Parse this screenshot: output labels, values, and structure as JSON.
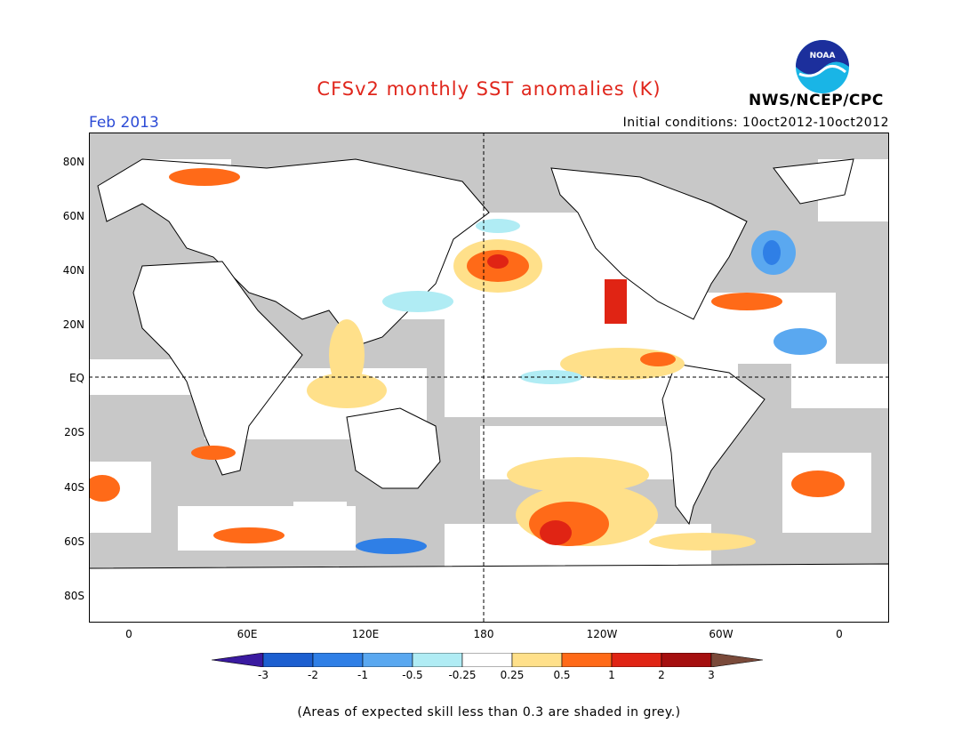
{
  "title": "CFSv2 monthly SST anomalies (K)",
  "valid_month": "Feb 2013",
  "initial_conditions": "Initial conditions: 10oct2012-10oct2012",
  "agency": "NWS/NCEP/CPC",
  "logo_text": "NOAA",
  "lat_labels": [
    "80N",
    "60N",
    "40N",
    "20N",
    "EQ",
    "20S",
    "40S",
    "60S",
    "80S"
  ],
  "lon_labels": [
    "0",
    "60E",
    "120E",
    "180",
    "120W",
    "60W",
    "0"
  ],
  "colorbar": {
    "tick_labels": [
      "-3",
      "-2",
      "-1",
      "-0.5",
      "-0.25",
      "0.25",
      "0.5",
      "1",
      "2",
      "3"
    ],
    "colors": [
      "#3a1aa0",
      "#1c5fd0",
      "#2f7fe6",
      "#5aa8f0",
      "#b0ecf4",
      "#ffffff",
      "#ffe08a",
      "#ff6a18",
      "#e02414",
      "#a50f0f",
      "#7a4a3a"
    ]
  },
  "map_colors": {
    "grey_no_skill": "#c8c8c8",
    "land": "#ffffff",
    "coast": "#000000"
  },
  "note": "(Areas of expected skill less than 0.3 are shaded in grey.)"
}
